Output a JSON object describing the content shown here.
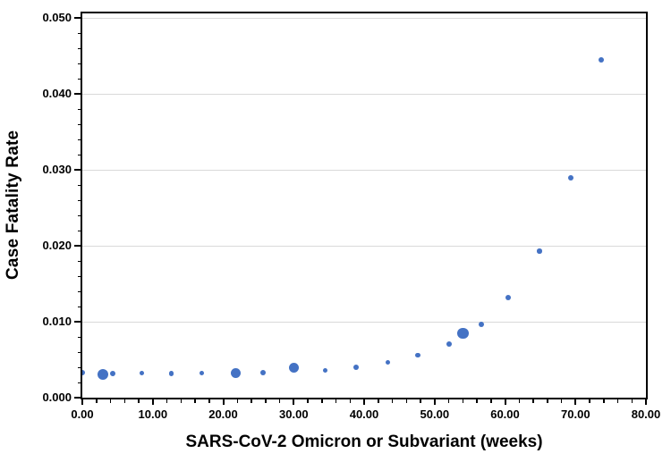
{
  "chart_data": {
    "type": "scatter",
    "title": "",
    "xlabel": "SARS-CoV-2 Omicron or Subvariant (weeks)",
    "ylabel": "Case Fatality Rate",
    "xlim": [
      0,
      80
    ],
    "ylim": [
      0,
      0.0506
    ],
    "x_major_interval": 10,
    "x_minor_interval": 2,
    "y_major_interval": 0.01,
    "y_minor_interval": 0.002,
    "x_ticks": [
      {
        "value": 0,
        "label": "0.00"
      },
      {
        "value": 10,
        "label": "10.00"
      },
      {
        "value": 20,
        "label": "20.00"
      },
      {
        "value": 30,
        "label": "30.00"
      },
      {
        "value": 40,
        "label": "40.00"
      },
      {
        "value": 50,
        "label": "50.00"
      },
      {
        "value": 60,
        "label": "60.00"
      },
      {
        "value": 70,
        "label": "70.00"
      },
      {
        "value": 80,
        "label": "80.00"
      }
    ],
    "y_ticks": [
      {
        "value": 0.0,
        "label": "0.000"
      },
      {
        "value": 0.01,
        "label": "0.010"
      },
      {
        "value": 0.02,
        "label": "0.020"
      },
      {
        "value": 0.03,
        "label": "0.030"
      },
      {
        "value": 0.04,
        "label": "0.040"
      },
      {
        "value": 0.05,
        "label": "0.050"
      }
    ],
    "grid": "horizontal-major-only",
    "legend": "none",
    "marker_color": "#4472C4",
    "gridline_color": "#d9d9d9",
    "frame_color": "#000000",
    "points": [
      {
        "x": 0.0,
        "y": 0.0033,
        "size": 6
      },
      {
        "x": 2.9,
        "y": 0.0031,
        "size": 12
      },
      {
        "x": 4.3,
        "y": 0.0032,
        "size": 6
      },
      {
        "x": 8.4,
        "y": 0.0032,
        "size": 5
      },
      {
        "x": 12.6,
        "y": 0.0032,
        "size": 5.5
      },
      {
        "x": 17.0,
        "y": 0.0032,
        "size": 5
      },
      {
        "x": 21.8,
        "y": 0.0032,
        "size": 11
      },
      {
        "x": 25.6,
        "y": 0.0033,
        "size": 6
      },
      {
        "x": 30.0,
        "y": 0.0039,
        "size": 11
      },
      {
        "x": 34.5,
        "y": 0.0036,
        "size": 5
      },
      {
        "x": 38.9,
        "y": 0.004,
        "size": 6
      },
      {
        "x": 43.4,
        "y": 0.0046,
        "size": 5
      },
      {
        "x": 47.6,
        "y": 0.0056,
        "size": 5.5
      },
      {
        "x": 52.0,
        "y": 0.0071,
        "size": 6
      },
      {
        "x": 54.0,
        "y": 0.0085,
        "size": 12.5
      },
      {
        "x": 56.6,
        "y": 0.0097,
        "size": 6
      },
      {
        "x": 60.4,
        "y": 0.0132,
        "size": 6
      },
      {
        "x": 64.9,
        "y": 0.0193,
        "size": 5.5
      },
      {
        "x": 69.3,
        "y": 0.0289,
        "size": 6
      },
      {
        "x": 73.7,
        "y": 0.0445,
        "size": 6
      }
    ]
  }
}
